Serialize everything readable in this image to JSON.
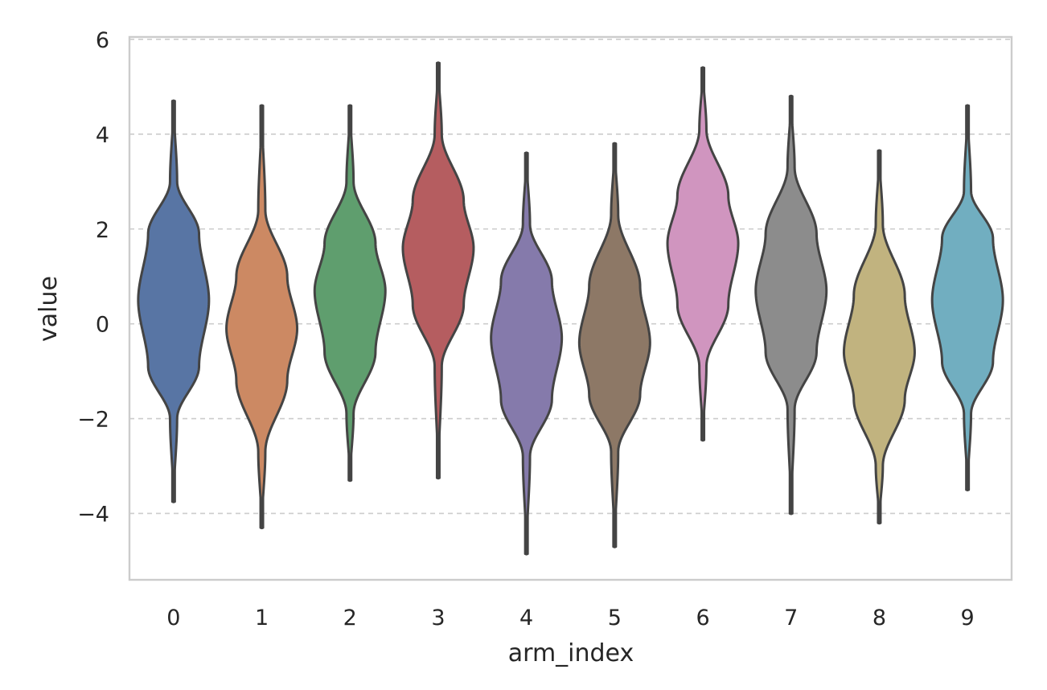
{
  "chart_data": {
    "type": "violin",
    "title": "",
    "xlabel": "arm_index",
    "ylabel": "value",
    "ylim": [
      -5.4,
      6.05
    ],
    "yticks": [
      6,
      4,
      2,
      0,
      -2,
      -4
    ],
    "ytick_labels": [
      "6",
      "4",
      "2",
      "0",
      "−2",
      "−4"
    ],
    "grid": "y-dashed",
    "categories": [
      "0",
      "1",
      "2",
      "3",
      "4",
      "5",
      "6",
      "7",
      "8",
      "9"
    ],
    "colors": [
      "#5875a4",
      "#cc8963",
      "#5f9e6e",
      "#b55d60",
      "#857aab",
      "#8d7866",
      "#d095bf",
      "#8c8c8c",
      "#c1b37f",
      "#71aec0"
    ],
    "violins": [
      {
        "category": "0",
        "min": -3.75,
        "max": 4.7,
        "mode": 0.5,
        "lower_q": -0.9,
        "upper_q": 1.9,
        "body_low": -2.0,
        "body_high": 3.0
      },
      {
        "category": "1",
        "min": -4.3,
        "max": 4.6,
        "mode": -0.1,
        "lower_q": -1.2,
        "upper_q": 1.0,
        "body_low": -2.7,
        "body_high": 2.4
      },
      {
        "category": "2",
        "min": -3.3,
        "max": 4.6,
        "mode": 0.7,
        "lower_q": -0.6,
        "upper_q": 1.7,
        "body_low": -1.9,
        "body_high": 3.0
      },
      {
        "category": "3",
        "min": -3.25,
        "max": 5.5,
        "mode": 1.6,
        "lower_q": 0.4,
        "upper_q": 2.6,
        "body_low": -0.9,
        "body_high": 4.0
      },
      {
        "category": "4",
        "min": -4.85,
        "max": 3.6,
        "mode": -0.3,
        "lower_q": -1.6,
        "upper_q": 0.9,
        "body_low": -2.8,
        "body_high": 2.1
      },
      {
        "category": "5",
        "min": -4.7,
        "max": 3.8,
        "mode": -0.4,
        "lower_q": -1.5,
        "upper_q": 0.8,
        "body_low": -2.7,
        "body_high": 2.3
      },
      {
        "category": "6",
        "min": -2.45,
        "max": 5.4,
        "mode": 1.7,
        "lower_q": 0.4,
        "upper_q": 2.7,
        "body_low": -0.9,
        "body_high": 4.1
      },
      {
        "category": "7",
        "min": -4.0,
        "max": 4.8,
        "mode": 0.7,
        "lower_q": -0.6,
        "upper_q": 1.9,
        "body_low": -1.8,
        "body_high": 3.3
      },
      {
        "category": "8",
        "min": -4.2,
        "max": 3.65,
        "mode": -0.6,
        "lower_q": -1.6,
        "upper_q": 0.6,
        "body_low": -3.0,
        "body_high": 2.1
      },
      {
        "category": "9",
        "min": -3.5,
        "max": 4.6,
        "mode": 0.5,
        "lower_q": -0.8,
        "upper_q": 1.8,
        "body_low": -1.9,
        "body_high": 2.8
      }
    ]
  }
}
